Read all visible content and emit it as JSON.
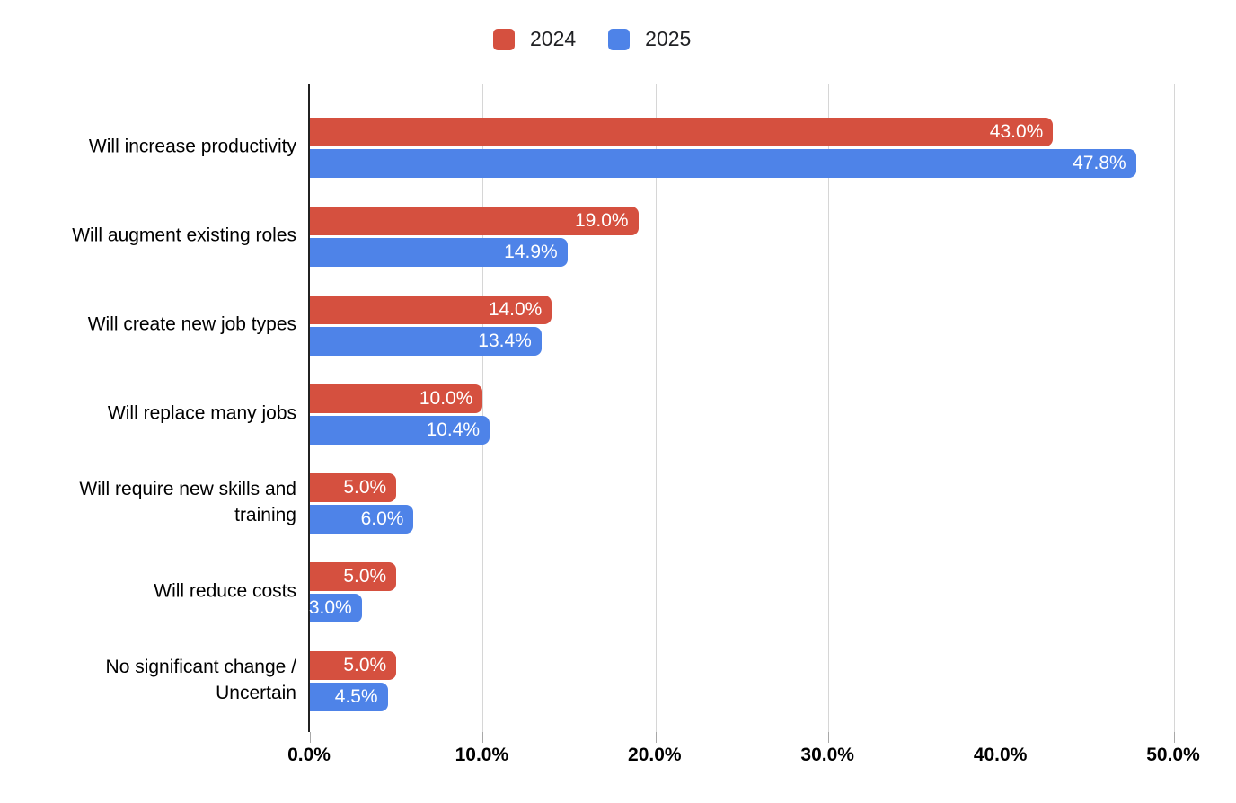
{
  "legend": {
    "items": [
      {
        "label": "2024",
        "color": "#d5503f"
      },
      {
        "label": "2025",
        "color": "#4e83e8"
      }
    ]
  },
  "chart_data": {
    "type": "bar",
    "orientation": "horizontal",
    "title": "",
    "categories": [
      "Will increase productivity",
      "Will augment existing roles",
      "Will create new job types",
      "Will replace many jobs",
      "Will require new skills and training",
      "Will reduce costs",
      "No significant change / Uncertain"
    ],
    "series": [
      {
        "name": "2024",
        "color": "#d5503f",
        "values": [
          43.0,
          19.0,
          14.0,
          10.0,
          5.0,
          5.0,
          5.0
        ],
        "labels": [
          "43.0%",
          "19.0%",
          "14.0%",
          "10.0%",
          "5.0%",
          "5.0%",
          "5.0%"
        ]
      },
      {
        "name": "2025",
        "color": "#4e83e8",
        "values": [
          47.8,
          14.9,
          13.4,
          10.4,
          6.0,
          3.0,
          4.5
        ],
        "labels": [
          "47.8%",
          "14.9%",
          "13.4%",
          "10.4%",
          "6.0%",
          "3.0%",
          "4.5%"
        ]
      }
    ],
    "xlim": [
      0,
      50
    ],
    "x_ticks": [
      0,
      10,
      20,
      30,
      40,
      50
    ],
    "x_tick_labels": [
      "0.0%",
      "10.0%",
      "20.0%",
      "30.0%",
      "40.0%",
      "50.0%"
    ],
    "grid": true,
    "legend_position": "top",
    "value_label_color": "#ffffff",
    "axis_color": "#212121",
    "gridline_color": "#d6d6d6"
  }
}
